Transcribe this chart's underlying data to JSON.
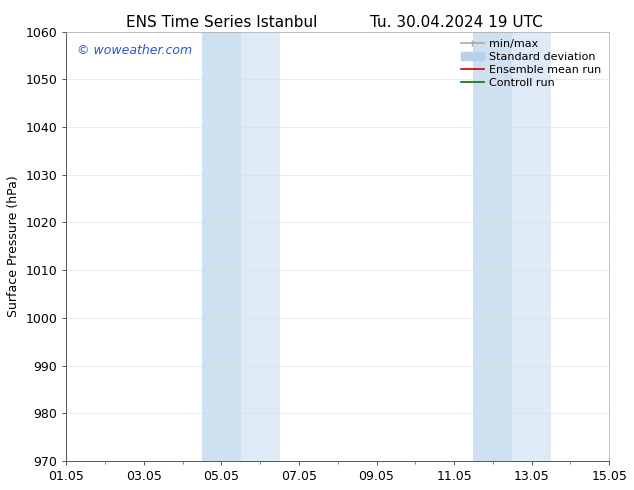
{
  "title_left": "ENS Time Series Istanbul",
  "title_right": "Tu. 30.04.2024 19 UTC",
  "ylabel": "Surface Pressure (hPa)",
  "ylim": [
    970,
    1060
  ],
  "yticks": [
    970,
    980,
    990,
    1000,
    1010,
    1020,
    1030,
    1040,
    1050,
    1060
  ],
  "xlim": [
    0,
    14
  ],
  "xticks": [
    0,
    2,
    4,
    6,
    8,
    10,
    12,
    14
  ],
  "xticklabels": [
    "01.05",
    "03.05",
    "05.05",
    "07.05",
    "09.05",
    "11.05",
    "13.05",
    "15.05"
  ],
  "shaded_regions": [
    {
      "x_start": 3.5,
      "x_end": 4.5,
      "color": "#cfe0f0"
    },
    {
      "x_start": 4.5,
      "x_end": 5.5,
      "color": "#deeaf5"
    },
    {
      "x_start": 10.5,
      "x_end": 11.5,
      "color": "#cfe0f0"
    },
    {
      "x_start": 11.5,
      "x_end": 12.5,
      "color": "#deeaf5"
    }
  ],
  "watermark_text": "© woweather.com",
  "watermark_color": "#3355cc",
  "legend_entries": [
    {
      "label": "min/max",
      "color": "#aaaaaa",
      "lw": 1.2,
      "style": "caps"
    },
    {
      "label": "Standard deviation",
      "color": "#b8d0e8",
      "lw": 7,
      "style": "band"
    },
    {
      "label": "Ensemble mean run",
      "color": "#cc0000",
      "lw": 1.2,
      "style": "line"
    },
    {
      "label": "Controll run",
      "color": "#007700",
      "lw": 1.2,
      "style": "line"
    }
  ],
  "background_color": "#ffffff",
  "title_fontsize": 11,
  "axis_fontsize": 9,
  "tick_fontsize": 9,
  "legend_fontsize": 8
}
